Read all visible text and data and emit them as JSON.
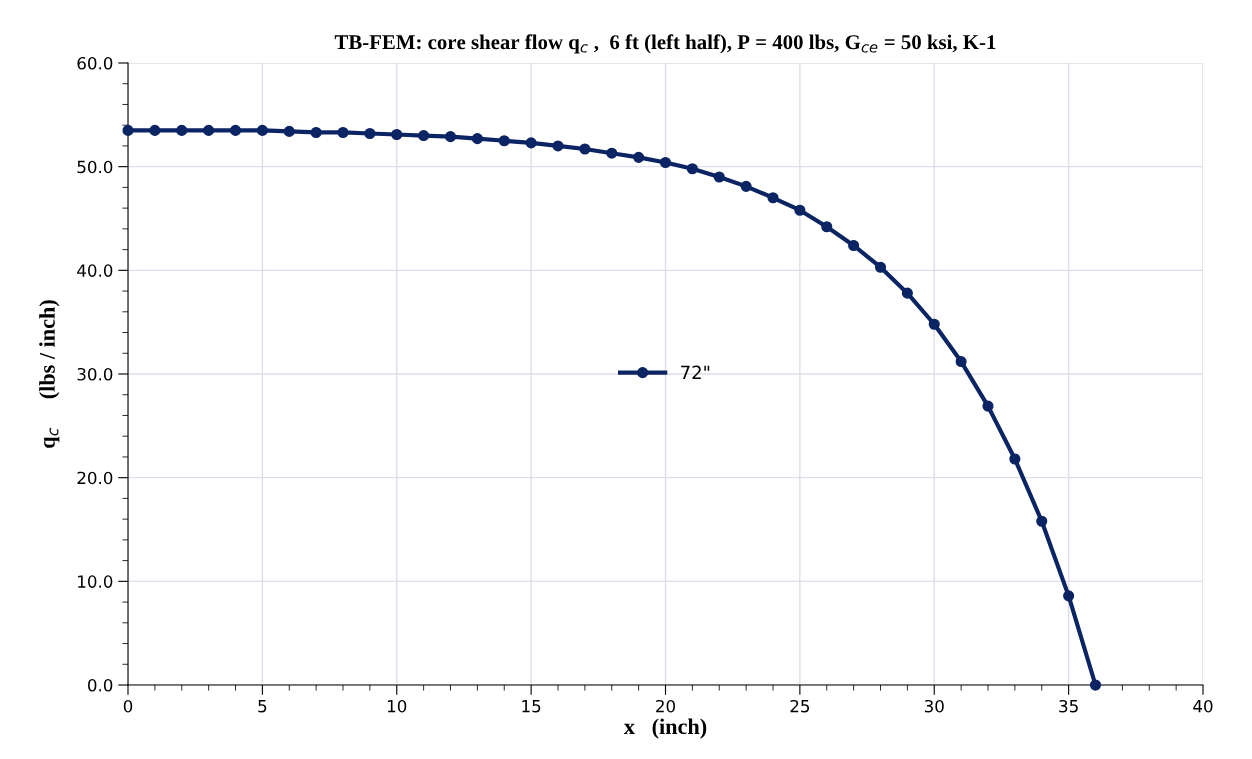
{
  "chart_data": {
    "type": "line",
    "title": "TB-FEM: core shear flow q$_{c}$ ,  6 ft (left half), P = 400 lbs, G$_{ce}$ = 50 ksi, K-1",
    "xlabel": "x   (inch)",
    "ylabel": "q$_{c}$     (lbs / inch)",
    "x": [
      0,
      1,
      2,
      3,
      4,
      5,
      6,
      7,
      8,
      9,
      10,
      11,
      12,
      13,
      14,
      15,
      16,
      17,
      18,
      19,
      20,
      21,
      22,
      23,
      24,
      25,
      26,
      27,
      28,
      29,
      30,
      31,
      32,
      33,
      34,
      35,
      36
    ],
    "series": [
      {
        "name": "72\"",
        "color": "#0b2463",
        "values": [
          53.5,
          53.5,
          53.5,
          53.5,
          53.5,
          53.5,
          53.4,
          53.3,
          53.3,
          53.2,
          53.1,
          53.0,
          52.9,
          52.7,
          52.5,
          52.3,
          52.0,
          51.7,
          51.3,
          50.9,
          50.4,
          49.8,
          49.0,
          48.1,
          47.0,
          45.8,
          44.2,
          42.4,
          40.3,
          37.8,
          34.8,
          31.2,
          26.9,
          21.8,
          15.8,
          8.6,
          0.0
        ]
      }
    ],
    "xlim": [
      0,
      40
    ],
    "xticks": [
      0,
      5,
      10,
      15,
      20,
      25,
      30,
      35,
      40
    ],
    "ylim": [
      0,
      60
    ],
    "yticks": [
      {
        "value": 0,
        "label": "0.0"
      },
      {
        "value": 10,
        "label": "10.0"
      },
      {
        "value": 20,
        "label": "20.0"
      },
      {
        "value": 30,
        "label": "30.0"
      },
      {
        "value": 40,
        "label": "40.0"
      },
      {
        "value": 50,
        "label": "50.0"
      },
      {
        "value": 60,
        "label": "60.0"
      }
    ],
    "grid": true,
    "legend": "center",
    "marker": "circle",
    "line_style": "solid"
  }
}
